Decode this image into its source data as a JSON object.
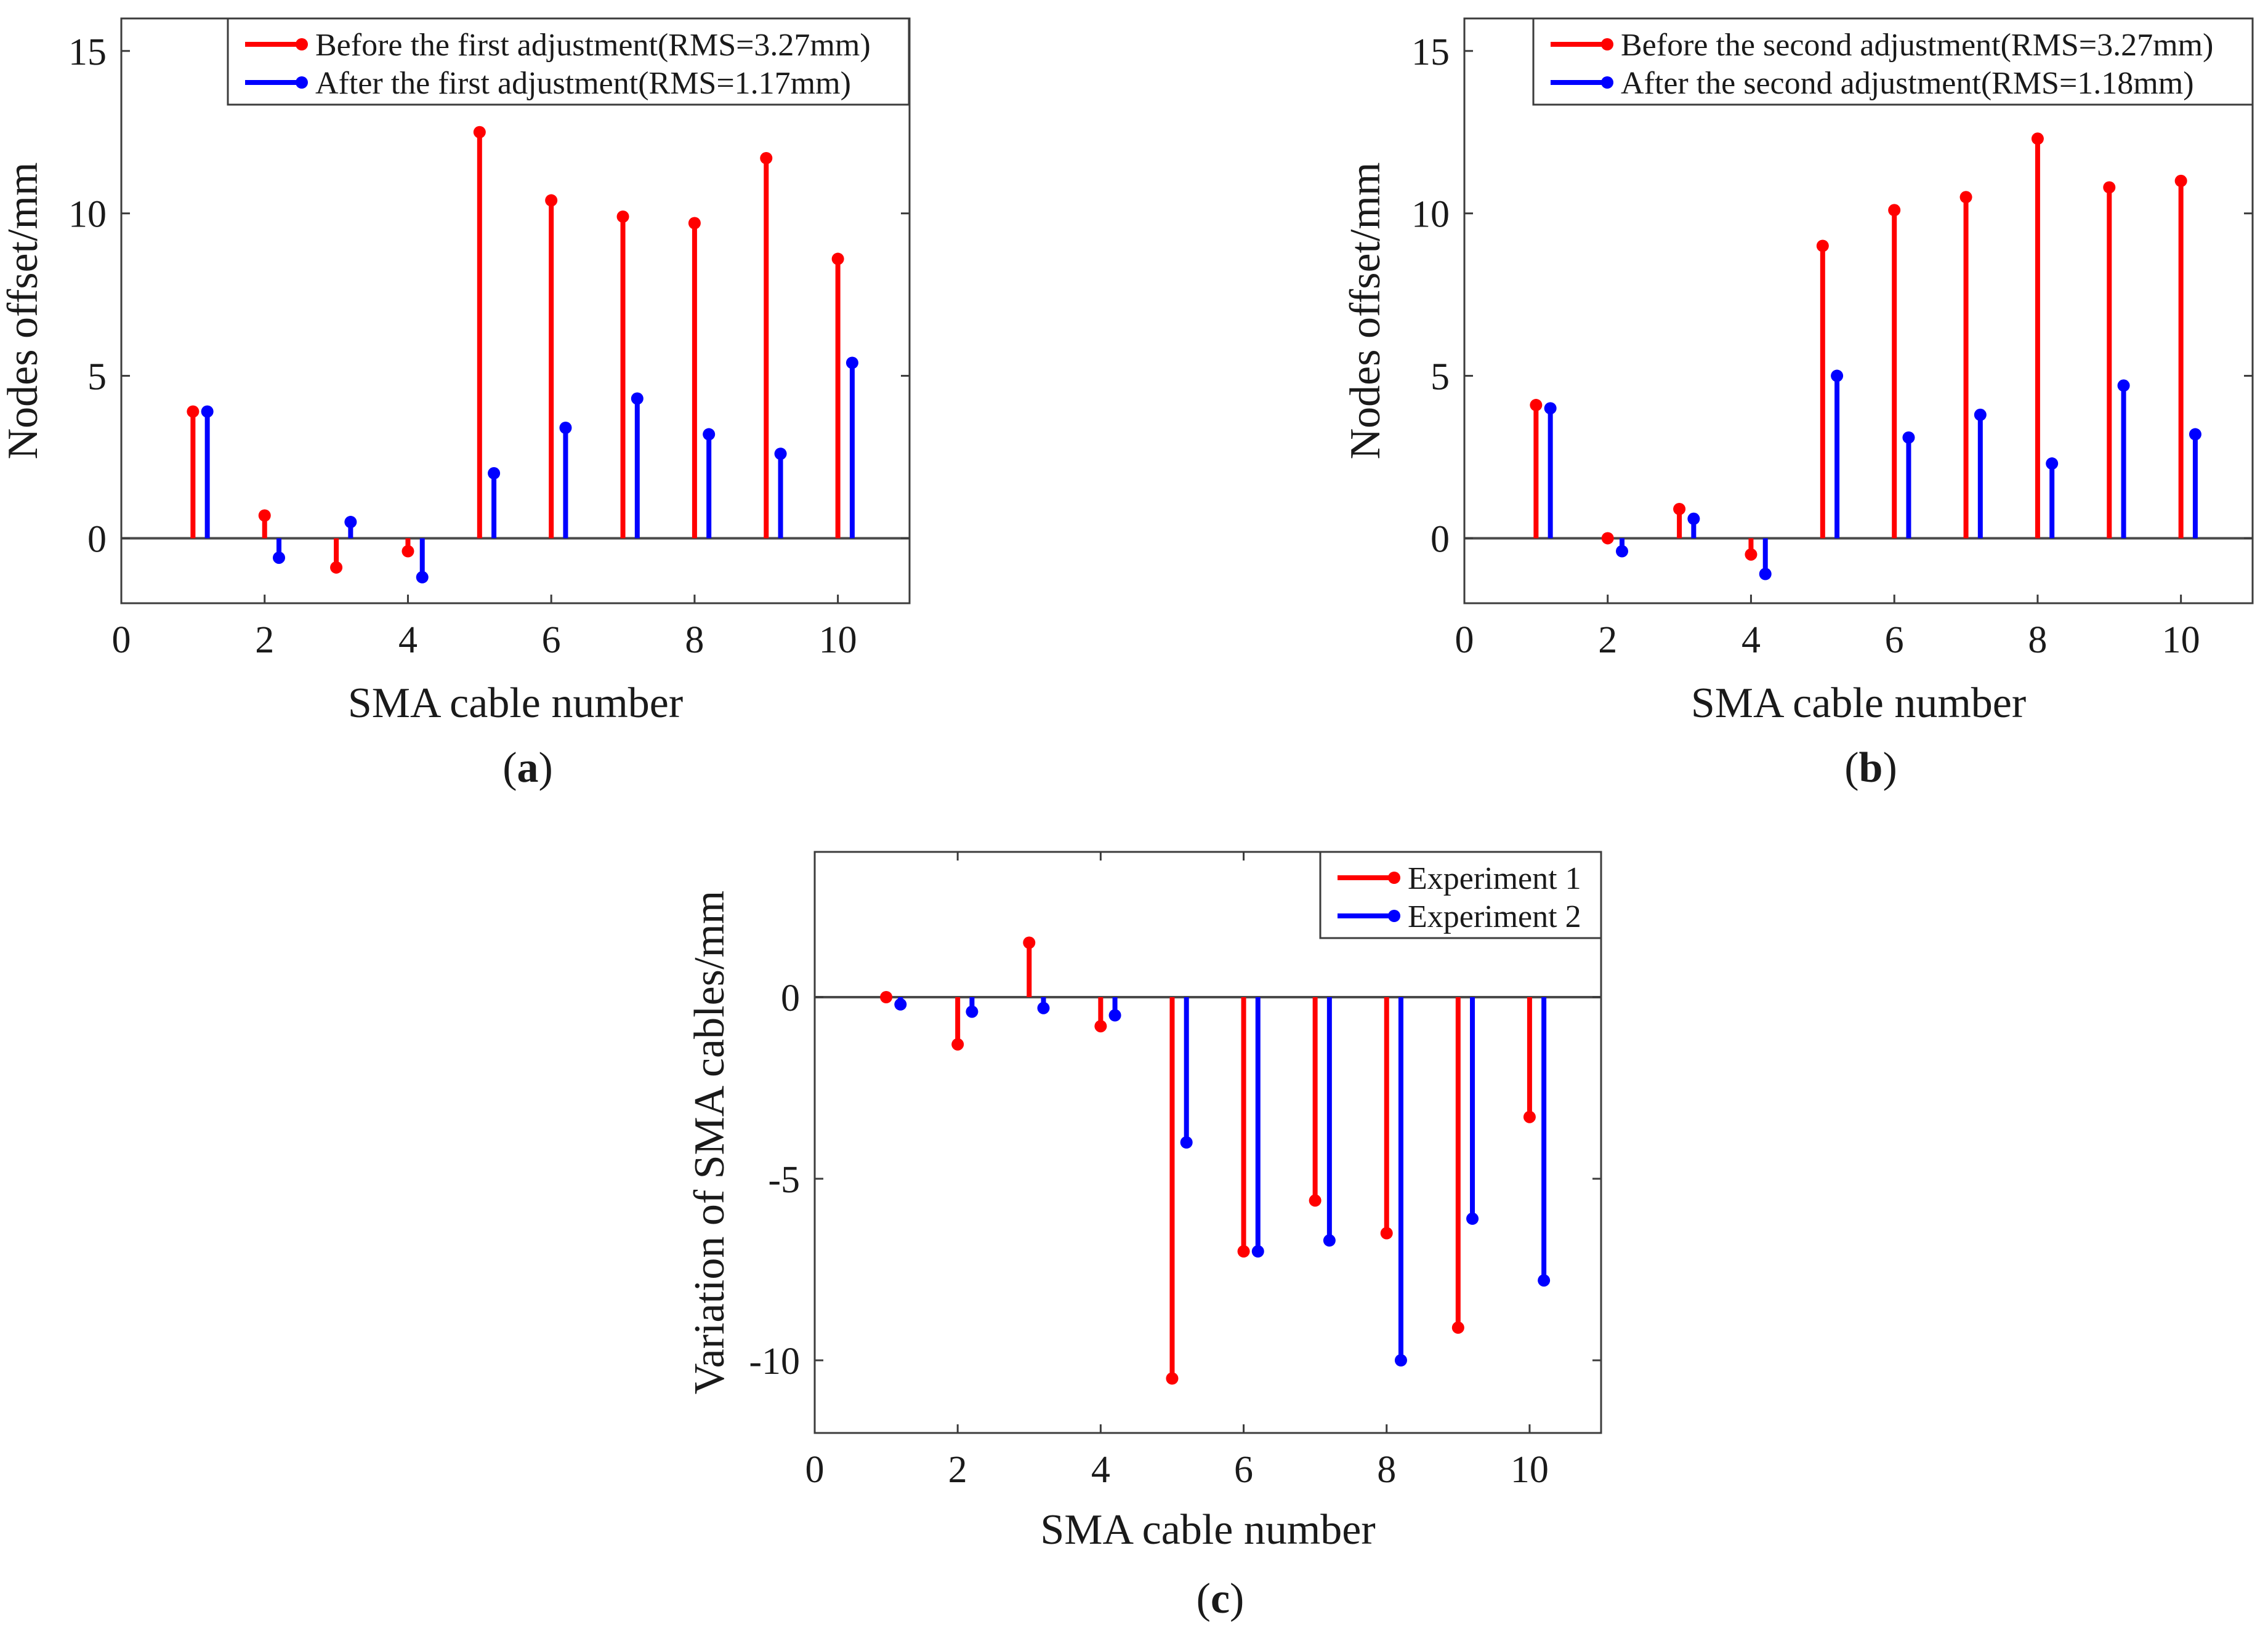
{
  "colors": {
    "series1": "#ff0000",
    "series2": "#0000ff",
    "axis": "#3c3c3c",
    "baseline": "#4a4a4a"
  },
  "chart_data": [
    {
      "type": "stem",
      "panel_label": "a",
      "xlabel": "SMA cable number",
      "ylabel": "Nodes offset/mm",
      "xlim": [
        0,
        11
      ],
      "ylim": [
        -2,
        16
      ],
      "xticks": [
        "0",
        "2",
        "4",
        "6",
        "8",
        "10"
      ],
      "yticks": [
        "0",
        "5",
        "10",
        "15"
      ],
      "legend_position": "top-right",
      "series": [
        {
          "name": "Before the first adjustment(RMS=3.27mm)",
          "color": "#ff0000",
          "x": [
            1,
            2,
            3,
            4,
            5,
            6,
            7,
            8,
            9,
            10
          ],
          "values": [
            3.9,
            0.7,
            -0.9,
            -0.4,
            12.5,
            10.4,
            9.9,
            9.7,
            11.7,
            8.6
          ]
        },
        {
          "name": "After the first adjustment(RMS=1.17mm)",
          "color": "#0000ff",
          "x": [
            1.2,
            2.2,
            3.2,
            4.2,
            5.2,
            6.2,
            7.2,
            8.2,
            9.2,
            10.2
          ],
          "values": [
            3.9,
            -0.6,
            0.5,
            -1.2,
            2.0,
            3.4,
            4.3,
            3.2,
            2.6,
            5.4
          ]
        }
      ]
    },
    {
      "type": "stem",
      "panel_label": "b",
      "xlabel": "SMA cable number",
      "ylabel": "Nodes offset/mm",
      "xlim": [
        0,
        11
      ],
      "ylim": [
        -2,
        16
      ],
      "xticks": [
        "0",
        "2",
        "4",
        "6",
        "8",
        "10"
      ],
      "yticks": [
        "0",
        "5",
        "10",
        "15"
      ],
      "legend_position": "top-right",
      "series": [
        {
          "name": "Before the second adjustment(RMS=3.27mm)",
          "color": "#ff0000",
          "x": [
            1,
            2,
            3,
            4,
            5,
            6,
            7,
            8,
            9,
            10
          ],
          "values": [
            4.1,
            0.0,
            0.9,
            -0.5,
            9.0,
            10.1,
            10.5,
            12.3,
            10.8,
            11.0
          ]
        },
        {
          "name": "After the second adjustment(RMS=1.18mm)",
          "color": "#0000ff",
          "x": [
            1.2,
            2.2,
            3.2,
            4.2,
            5.2,
            6.2,
            7.2,
            8.2,
            9.2,
            10.2
          ],
          "values": [
            4.0,
            -0.4,
            0.6,
            -1.1,
            5.0,
            3.1,
            3.8,
            2.3,
            4.7,
            3.2
          ]
        }
      ]
    },
    {
      "type": "stem",
      "panel_label": "c",
      "xlabel": "SMA cable number",
      "ylabel": "Variation of SMA cables/mm",
      "xlim": [
        0,
        11
      ],
      "ylim": [
        -12,
        4
      ],
      "xticks": [
        "0",
        "2",
        "4",
        "6",
        "8",
        "10"
      ],
      "yticks": [
        "-10",
        "-5",
        "0"
      ],
      "legend_position": "top-right",
      "series": [
        {
          "name": "Experiment 1",
          "color": "#ff0000",
          "x": [
            1,
            2,
            3,
            4,
            5,
            6,
            7,
            8,
            9,
            10
          ],
          "values": [
            0.0,
            -1.3,
            1.5,
            -0.8,
            -10.5,
            -7.0,
            -5.6,
            -6.5,
            -9.1,
            -3.3
          ]
        },
        {
          "name": "Experiment 2",
          "color": "#0000ff",
          "x": [
            1.2,
            2.2,
            3.2,
            4.2,
            5.2,
            6.2,
            7.2,
            8.2,
            9.2,
            10.2
          ],
          "values": [
            -0.2,
            -0.4,
            -0.3,
            -0.5,
            -4.0,
            -7.0,
            -6.7,
            -10.0,
            -6.1,
            -7.8
          ]
        }
      ]
    }
  ]
}
